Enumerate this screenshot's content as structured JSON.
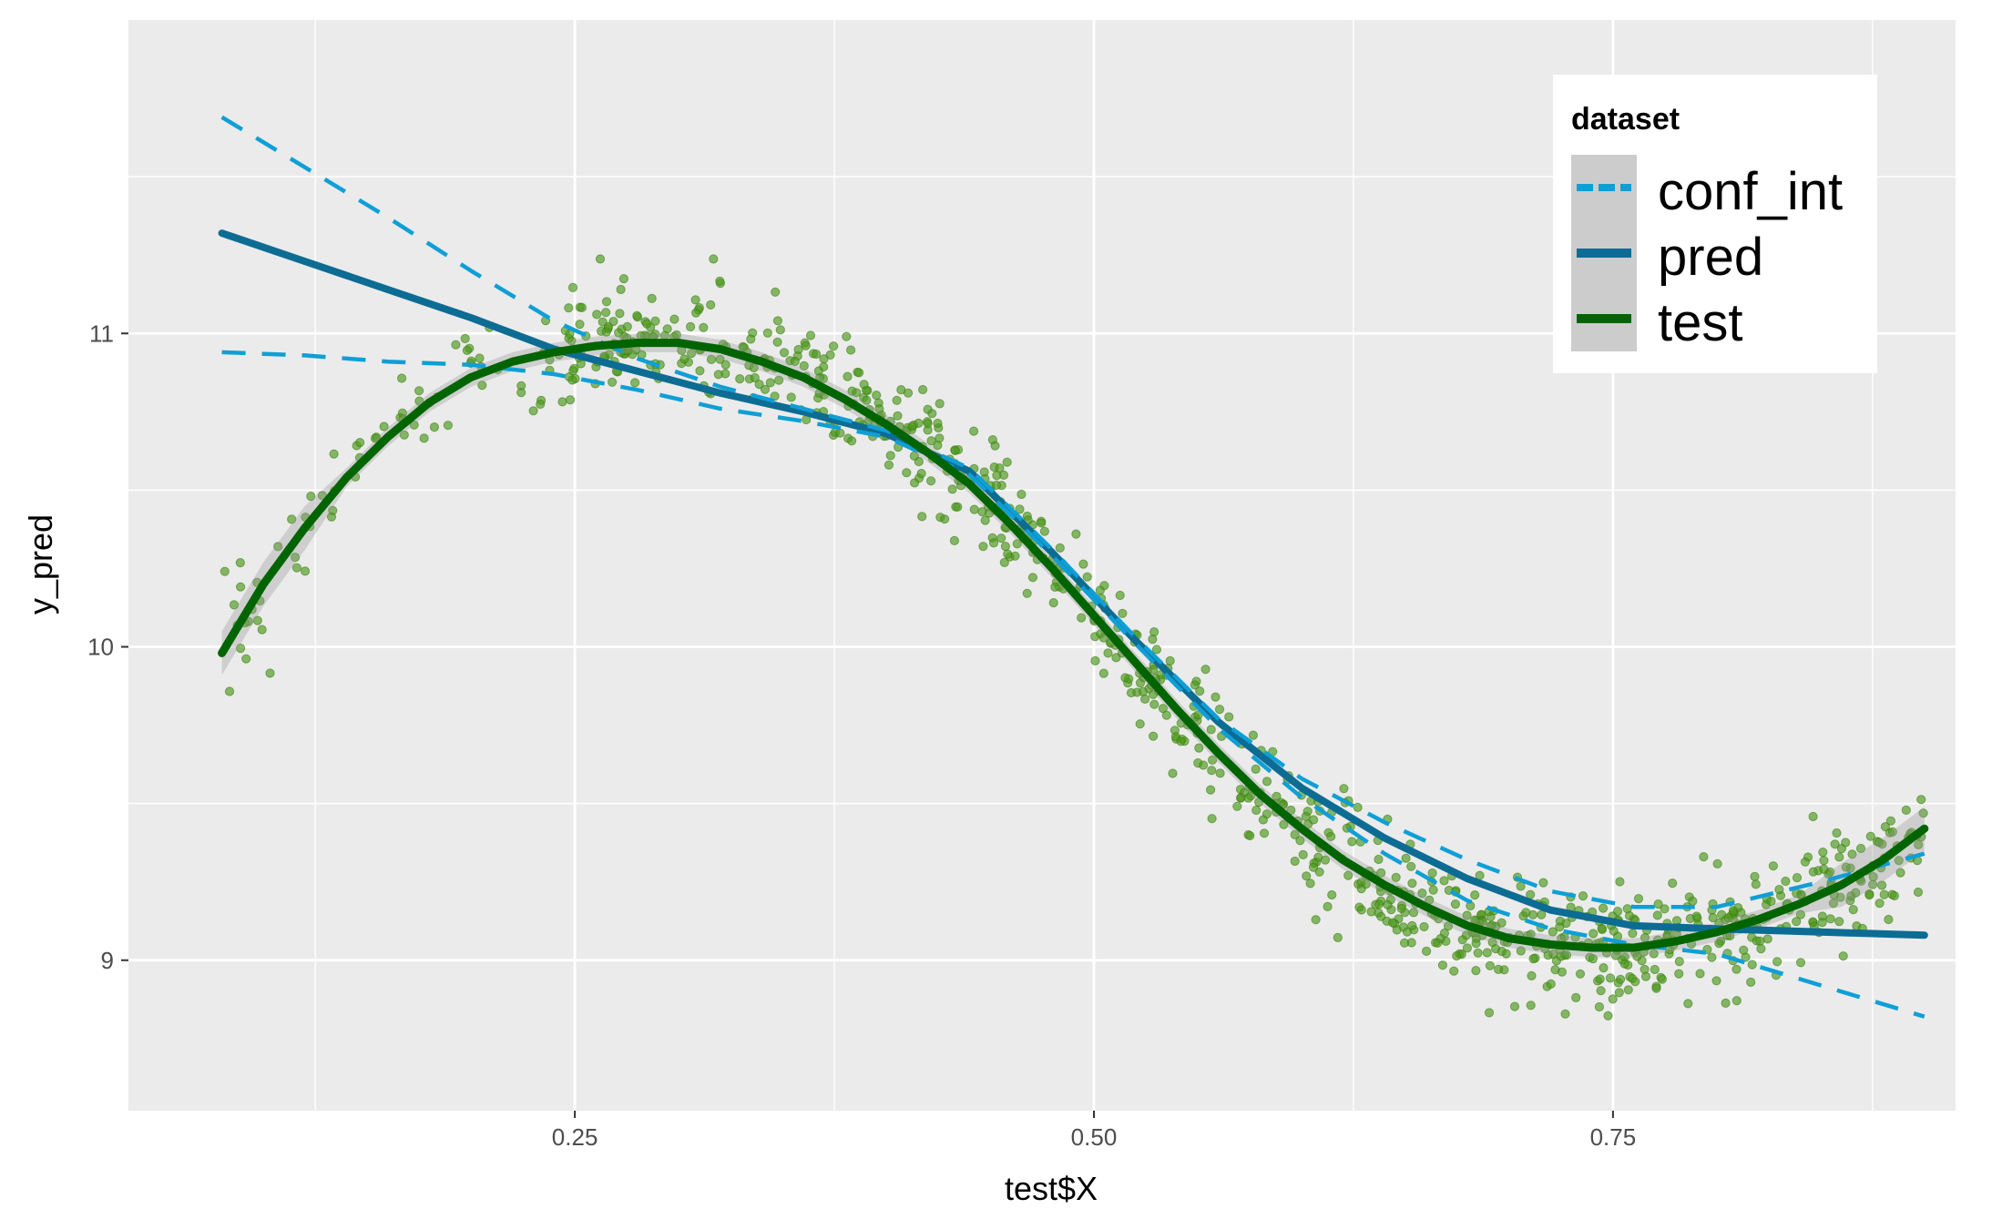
{
  "chart_data": {
    "type": "scatter",
    "xlabel": "test$X",
    "ylabel": "y_pred",
    "xlim": [
      0.035,
      0.915
    ],
    "ylim": [
      8.52,
      12.0
    ],
    "x_ticks": [
      0.25,
      0.5,
      0.75
    ],
    "x_tick_labels": [
      "0.25",
      "0.50",
      "0.75"
    ],
    "y_ticks": [
      9,
      10,
      11
    ],
    "y_tick_labels": [
      "9",
      "10",
      "11"
    ],
    "grid": true,
    "background": "#ebebeb",
    "legend": {
      "title": "dataset",
      "position": "top-right",
      "entries": [
        {
          "label": "conf_int",
          "color": "#0f9fd6",
          "style": "dashed"
        },
        {
          "label": "pred",
          "color": "#0d6c93",
          "style": "solid"
        },
        {
          "label": "test",
          "color": "#006400",
          "style": "solid"
        }
      ]
    },
    "series": [
      {
        "name": "pred",
        "kind": "line",
        "color": "#0d6c93",
        "x": [
          0.08,
          0.12,
          0.16,
          0.2,
          0.24,
          0.28,
          0.32,
          0.36,
          0.4,
          0.44,
          0.48,
          0.52,
          0.56,
          0.6,
          0.64,
          0.68,
          0.72,
          0.76,
          0.8,
          0.85,
          0.9
        ],
        "y": [
          11.32,
          11.23,
          11.14,
          11.05,
          10.95,
          10.88,
          10.81,
          10.75,
          10.68,
          10.56,
          10.3,
          10.02,
          9.76,
          9.55,
          9.39,
          9.26,
          9.16,
          9.11,
          9.1,
          9.09,
          9.08
        ]
      },
      {
        "name": "conf_int",
        "kind": "dashed",
        "color": "#0f9fd6",
        "x": [
          0.08,
          0.12,
          0.16,
          0.2,
          0.24,
          0.28,
          0.32,
          0.36,
          0.4,
          0.44,
          0.48,
          0.52,
          0.56,
          0.6,
          0.64,
          0.68,
          0.72,
          0.76,
          0.8,
          0.85,
          0.9
        ],
        "y": [
          11.69,
          11.53,
          11.37,
          11.2,
          11.04,
          10.92,
          10.83,
          10.76,
          10.69,
          10.57,
          10.31,
          10.03,
          9.77,
          9.58,
          9.44,
          9.32,
          9.22,
          9.17,
          9.17,
          9.25,
          9.34
        ]
      },
      {
        "name": "conf_int",
        "kind": "dashed",
        "color": "#0f9fd6",
        "x": [
          0.08,
          0.12,
          0.16,
          0.2,
          0.24,
          0.28,
          0.32,
          0.36,
          0.4,
          0.44,
          0.48,
          0.52,
          0.56,
          0.6,
          0.64,
          0.68,
          0.72,
          0.76,
          0.8,
          0.85,
          0.9
        ],
        "y": [
          10.94,
          10.93,
          10.91,
          10.9,
          10.87,
          10.82,
          10.76,
          10.72,
          10.67,
          10.55,
          10.29,
          10.01,
          9.74,
          9.52,
          9.34,
          9.19,
          9.1,
          9.05,
          9.02,
          8.92,
          8.82
        ]
      },
      {
        "name": "test",
        "kind": "smooth",
        "color": "#006400",
        "x": [
          0.08,
          0.1,
          0.12,
          0.14,
          0.16,
          0.18,
          0.2,
          0.22,
          0.24,
          0.26,
          0.28,
          0.3,
          0.32,
          0.34,
          0.36,
          0.38,
          0.4,
          0.42,
          0.44,
          0.46,
          0.48,
          0.5,
          0.52,
          0.54,
          0.56,
          0.58,
          0.6,
          0.62,
          0.64,
          0.66,
          0.68,
          0.7,
          0.72,
          0.74,
          0.76,
          0.78,
          0.8,
          0.82,
          0.84,
          0.86,
          0.88,
          0.9
        ],
        "y": [
          9.98,
          10.2,
          10.38,
          10.54,
          10.67,
          10.78,
          10.86,
          10.91,
          10.94,
          10.96,
          10.97,
          10.97,
          10.95,
          10.91,
          10.86,
          10.79,
          10.71,
          10.62,
          10.52,
          10.39,
          10.25,
          10.1,
          9.95,
          9.8,
          9.66,
          9.53,
          9.42,
          9.32,
          9.24,
          9.17,
          9.11,
          9.07,
          9.05,
          9.04,
          9.04,
          9.06,
          9.09,
          9.13,
          9.18,
          9.24,
          9.32,
          9.42
        ]
      }
    ],
    "scatter": {
      "color": "#4c9a1c",
      "count": 1000,
      "x_range": [
        0.08,
        0.9
      ],
      "spread": 0.09
    }
  }
}
